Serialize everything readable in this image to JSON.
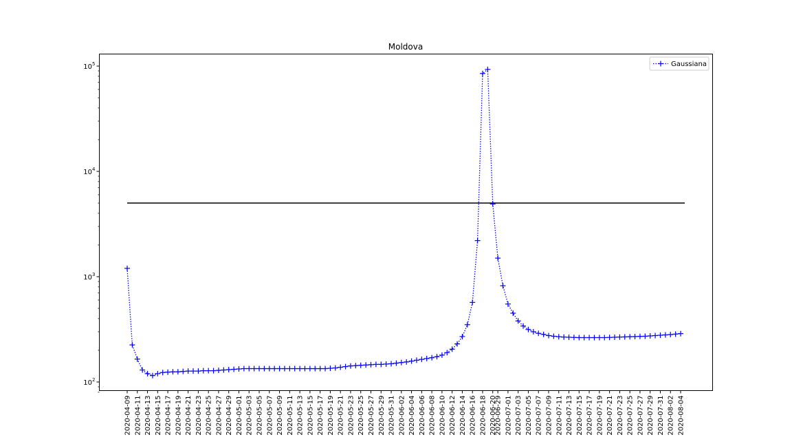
{
  "chart_data": {
    "type": "line",
    "title": "Moldova",
    "xlabel": "",
    "ylabel": "",
    "yscale": "log",
    "ylim": [
      80,
      130000
    ],
    "grid": false,
    "legend_position": "top-right",
    "x": [
      "2020-04-09",
      "2020-04-10",
      "2020-04-11",
      "2020-04-12",
      "2020-04-13",
      "2020-04-14",
      "2020-04-15",
      "2020-04-16",
      "2020-04-17",
      "2020-04-18",
      "2020-04-19",
      "2020-04-20",
      "2020-04-21",
      "2020-04-22",
      "2020-04-23",
      "2020-04-24",
      "2020-04-25",
      "2020-04-26",
      "2020-04-27",
      "2020-04-28",
      "2020-04-29",
      "2020-04-30",
      "2020-05-01",
      "2020-05-02",
      "2020-05-03",
      "2020-05-04",
      "2020-05-05",
      "2020-05-06",
      "2020-05-07",
      "2020-05-08",
      "2020-05-09",
      "2020-05-10",
      "2020-05-11",
      "2020-05-12",
      "2020-05-13",
      "2020-05-14",
      "2020-05-15",
      "2020-05-16",
      "2020-05-17",
      "2020-05-18",
      "2020-05-19",
      "2020-05-20",
      "2020-05-21",
      "2020-05-22",
      "2020-05-23",
      "2020-05-24",
      "2020-05-25",
      "2020-05-26",
      "2020-05-27",
      "2020-05-28",
      "2020-05-29",
      "2020-05-30",
      "2020-05-31",
      "2020-06-01",
      "2020-06-02",
      "2020-06-03",
      "2020-06-04",
      "2020-06-05",
      "2020-06-06",
      "2020-06-07",
      "2020-06-08",
      "2020-06-09",
      "2020-06-10",
      "2020-06-11",
      "2020-06-12",
      "2020-06-13",
      "2020-06-14",
      "2020-06-15",
      "2020-06-16",
      "2020-06-17",
      "2020-06-18",
      "2020-06-19",
      "2020-06-20",
      "2020-06-29",
      "2020-06-30",
      "2020-07-01",
      "2020-07-02",
      "2020-07-03",
      "2020-07-04",
      "2020-07-05",
      "2020-07-06",
      "2020-07-07",
      "2020-07-08",
      "2020-07-09",
      "2020-07-10",
      "2020-07-11",
      "2020-07-12",
      "2020-07-13",
      "2020-07-14",
      "2020-07-15",
      "2020-07-16",
      "2020-07-17",
      "2020-07-18",
      "2020-07-19",
      "2020-07-20",
      "2020-07-21",
      "2020-07-22",
      "2020-07-23",
      "2020-07-24",
      "2020-07-25",
      "2020-07-26",
      "2020-07-27",
      "2020-07-28",
      "2020-07-29",
      "2020-07-30",
      "2020-07-31",
      "2020-08-01",
      "2020-08-02",
      "2020-08-03",
      "2020-08-04"
    ],
    "xticks": [
      "2020-04-09",
      "2020-04-11",
      "2020-04-13",
      "2020-04-15",
      "2020-04-17",
      "2020-04-19",
      "2020-04-21",
      "2020-04-23",
      "2020-04-25",
      "2020-04-27",
      "2020-04-29",
      "2020-05-01",
      "2020-05-03",
      "2020-05-05",
      "2020-05-07",
      "2020-05-09",
      "2020-05-11",
      "2020-05-13",
      "2020-05-15",
      "2020-05-17",
      "2020-05-19",
      "2020-05-21",
      "2020-05-23",
      "2020-05-25",
      "2020-05-27",
      "2020-05-29",
      "2020-05-31",
      "2020-06-02",
      "2020-06-04",
      "2020-06-06",
      "2020-06-08",
      "2020-06-10",
      "2020-06-12",
      "2020-06-14",
      "2020-06-16",
      "2020-06-18",
      "2020-06-20",
      "2020-06-29",
      "2020-07-01",
      "2020-07-03",
      "2020-07-05",
      "2020-07-07",
      "2020-07-09",
      "2020-07-11",
      "2020-07-13",
      "2020-07-15",
      "2020-07-17",
      "2020-07-19",
      "2020-07-21",
      "2020-07-23",
      "2020-07-25",
      "2020-07-27",
      "2020-07-29",
      "2020-07-31",
      "2020-08-02",
      "2020-08-04"
    ],
    "yticks": [
      {
        "value": 100,
        "base": "10",
        "exp": "2"
      },
      {
        "value": 1000,
        "base": "10",
        "exp": "3"
      },
      {
        "value": 10000,
        "base": "10",
        "exp": "4"
      },
      {
        "value": 100000,
        "base": "10",
        "exp": "5"
      }
    ],
    "series": [
      {
        "name": "Gaussiana",
        "color": "#0000ff",
        "linestyle": "dotted",
        "marker": "+",
        "values": [
          1200,
          225,
          165,
          130,
          120,
          115,
          120,
          123,
          124,
          125,
          125,
          126,
          127,
          127,
          127,
          128,
          128,
          128,
          129,
          130,
          131,
          132,
          133,
          134,
          134,
          134,
          134,
          134,
          134,
          134,
          134,
          134,
          134,
          134,
          134,
          134,
          134,
          134,
          134,
          134,
          135,
          136,
          138,
          140,
          142,
          143,
          144,
          145,
          146,
          147,
          147,
          148,
          149,
          151,
          153,
          155,
          158,
          161,
          164,
          167,
          170,
          174,
          180,
          190,
          205,
          230,
          270,
          350,
          570,
          2200,
          85000,
          93000,
          4900,
          1500,
          820,
          550,
          450,
          380,
          340,
          315,
          300,
          290,
          283,
          276,
          272,
          269,
          267,
          266,
          265,
          264,
          264,
          264,
          264,
          264,
          264,
          265,
          266,
          267,
          268,
          269,
          270,
          271,
          272,
          274,
          276,
          278,
          280,
          282,
          285,
          288
        ]
      }
    ],
    "reference_lines": [
      {
        "y": 5000,
        "color": "#000000",
        "from": "2020-04-09",
        "to": "2020-08-04"
      }
    ]
  },
  "legend": {
    "label": "Gaussiana"
  }
}
